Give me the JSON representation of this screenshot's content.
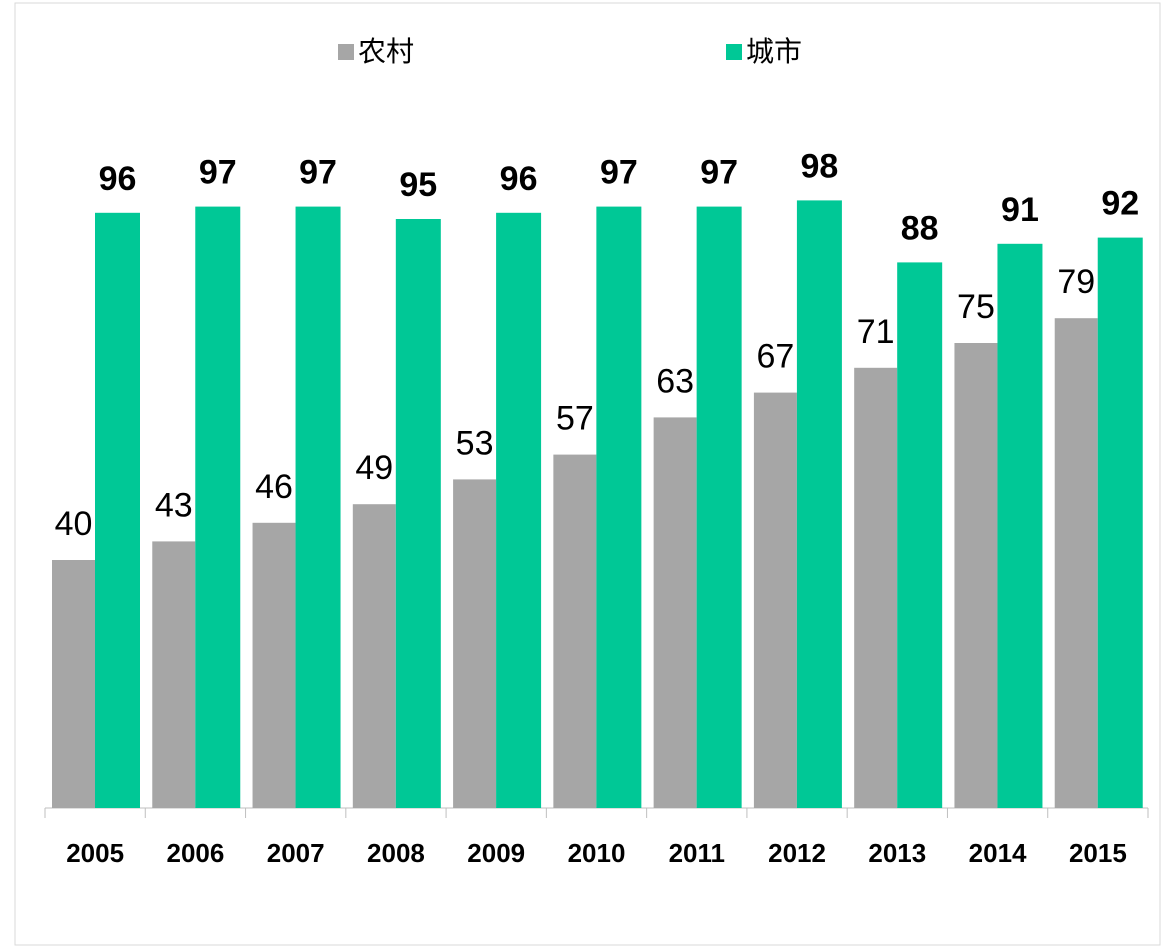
{
  "chart_data": {
    "type": "bar",
    "categories": [
      "2005",
      "2006",
      "2007",
      "2008",
      "2009",
      "2010",
      "2011",
      "2012",
      "2013",
      "2014",
      "2015"
    ],
    "series": [
      {
        "name": "农村",
        "color": "#a6a6a6",
        "values": [
          40,
          43,
          46,
          49,
          53,
          57,
          63,
          67,
          71,
          75,
          79
        ]
      },
      {
        "name": "城市",
        "color": "#00c896",
        "values": [
          96,
          97,
          97,
          95,
          96,
          97,
          97,
          98,
          88,
          91,
          92
        ]
      }
    ],
    "legend": "top"
  }
}
